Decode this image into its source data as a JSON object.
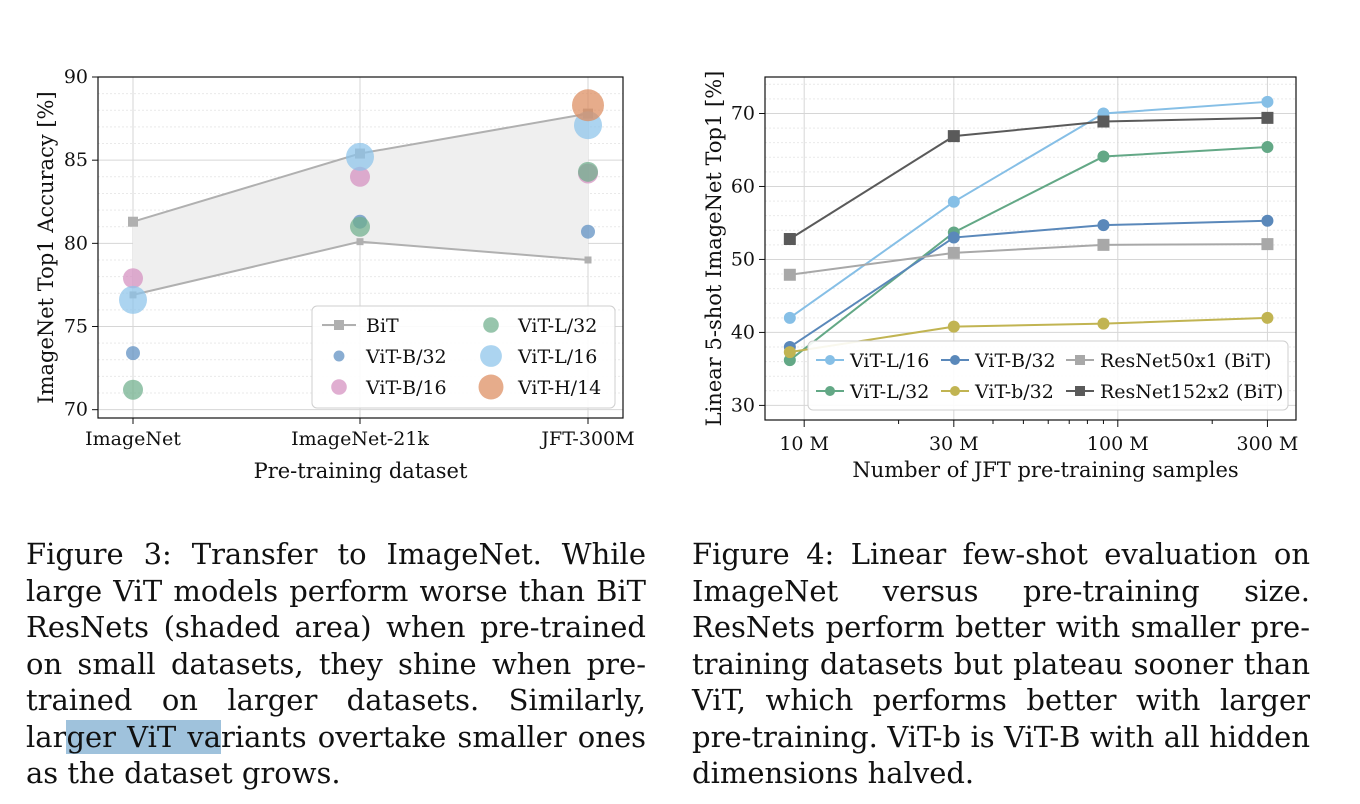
{
  "chart_data": [
    {
      "type": "scatter",
      "title": "",
      "xlabel": "Pre-training dataset",
      "ylabel": "ImageNet Top1 Accuracy [%]",
      "categories": [
        "ImageNet",
        "ImageNet-21k",
        "JFT-300M"
      ],
      "ylim": [
        69.5,
        90
      ],
      "yticks": [
        70,
        75,
        80,
        85,
        90
      ],
      "grid": true,
      "legend_position": "bottom-right",
      "shaded_area": "BiT",
      "series": [
        {
          "name": "BiT",
          "marker": "square-line",
          "color": "#b0b0b0",
          "upper": [
            81.3,
            85.4,
            87.8
          ],
          "lower": [
            76.9,
            80.1,
            79.0
          ]
        },
        {
          "name": "ViT-B/32",
          "color": "#5b8ec0",
          "size": 7,
          "values": [
            73.4,
            81.3,
            80.7
          ]
        },
        {
          "name": "ViT-B/16",
          "color": "#d48fbf",
          "size": 10,
          "values": [
            77.9,
            84.0,
            84.2
          ]
        },
        {
          "name": "ViT-L/32",
          "color": "#6fae8c",
          "size": 10,
          "values": [
            71.2,
            81.0,
            84.3
          ]
        },
        {
          "name": "ViT-L/16",
          "color": "#8cc4ea",
          "size": 14,
          "values": [
            76.6,
            85.2,
            87.1
          ]
        },
        {
          "name": "ViT-H/14",
          "color": "#dc8c5e",
          "size": 16,
          "values": [
            null,
            null,
            88.3
          ]
        }
      ]
    },
    {
      "type": "line",
      "title": "",
      "xlabel": "Number of JFT pre-training samples",
      "ylabel": "Linear 5-shot ImageNet Top1 [%]",
      "x": [
        9,
        30,
        90,
        300
      ],
      "xticks": [
        10,
        30,
        100,
        300
      ],
      "xtick_labels": [
        "10 M",
        "30 M",
        "100 M",
        "300 M"
      ],
      "xscale": "log",
      "ylim": [
        28,
        75
      ],
      "yticks": [
        30,
        40,
        50,
        60,
        70
      ],
      "grid": true,
      "legend_position": "bottom-right",
      "series": [
        {
          "name": "ViT-L/16",
          "color": "#86bfe6",
          "marker": "circle",
          "values": [
            42.0,
            57.9,
            70.0,
            71.6
          ]
        },
        {
          "name": "ViT-L/32",
          "color": "#63a886",
          "marker": "circle",
          "values": [
            36.2,
            53.7,
            64.1,
            65.4
          ]
        },
        {
          "name": "ViT-B/32",
          "color": "#5a88ba",
          "marker": "circle",
          "values": [
            38.0,
            53.0,
            54.7,
            55.3
          ]
        },
        {
          "name": "ViT-b/32",
          "color": "#c1b452",
          "marker": "circle",
          "values": [
            37.3,
            40.8,
            41.2,
            42.0
          ]
        },
        {
          "name": "ResNet50x1 (BiT)",
          "color": "#a8a8a8",
          "marker": "square",
          "values": [
            47.9,
            50.9,
            52.0,
            52.1
          ]
        },
        {
          "name": "ResNet152x2 (BiT)",
          "color": "#5a5a5a",
          "marker": "square",
          "values": [
            52.8,
            66.9,
            68.9,
            69.4
          ]
        }
      ]
    }
  ],
  "captions": {
    "fig3": {
      "text": "Figure 3:  Transfer to ImageNet.  While large ViT models perform worse than BiT ResNets (shaded area) when pre-trained on small datasets, they shine when pre-trained on larger datasets.  Similarly, lar",
      "highlight": "ger ViT va",
      "rest": "riants overtake smaller ones as the dataset grows."
    },
    "fig4": {
      "text": "Figure 4: Linear few-shot evaluation on ImageNet versus pre-training size.  ResNets perform better with smaller pre-training datasets but plateau sooner than ViT, which performs better with larger pre-training. ViT-b is ViT-B with all hidden dimensions halved."
    }
  }
}
